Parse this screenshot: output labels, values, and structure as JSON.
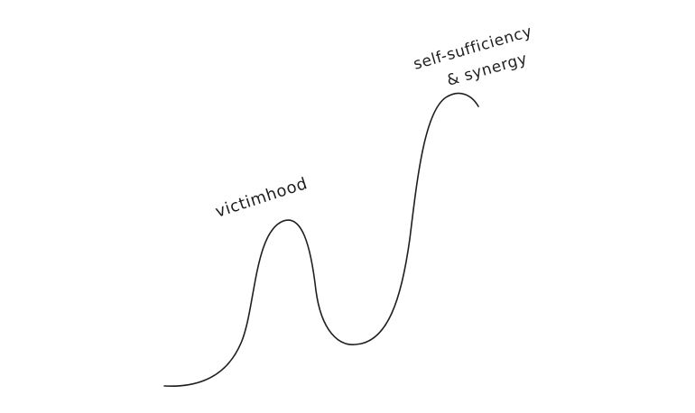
{
  "diagram": {
    "labels": {
      "victimhood": "victimhood",
      "self_sufficiency_line1": "self-sufficiency",
      "self_sufficiency_line2": "& synergy"
    },
    "colors": {
      "background": "#ffffff",
      "ink": "#1f1f1f"
    }
  }
}
